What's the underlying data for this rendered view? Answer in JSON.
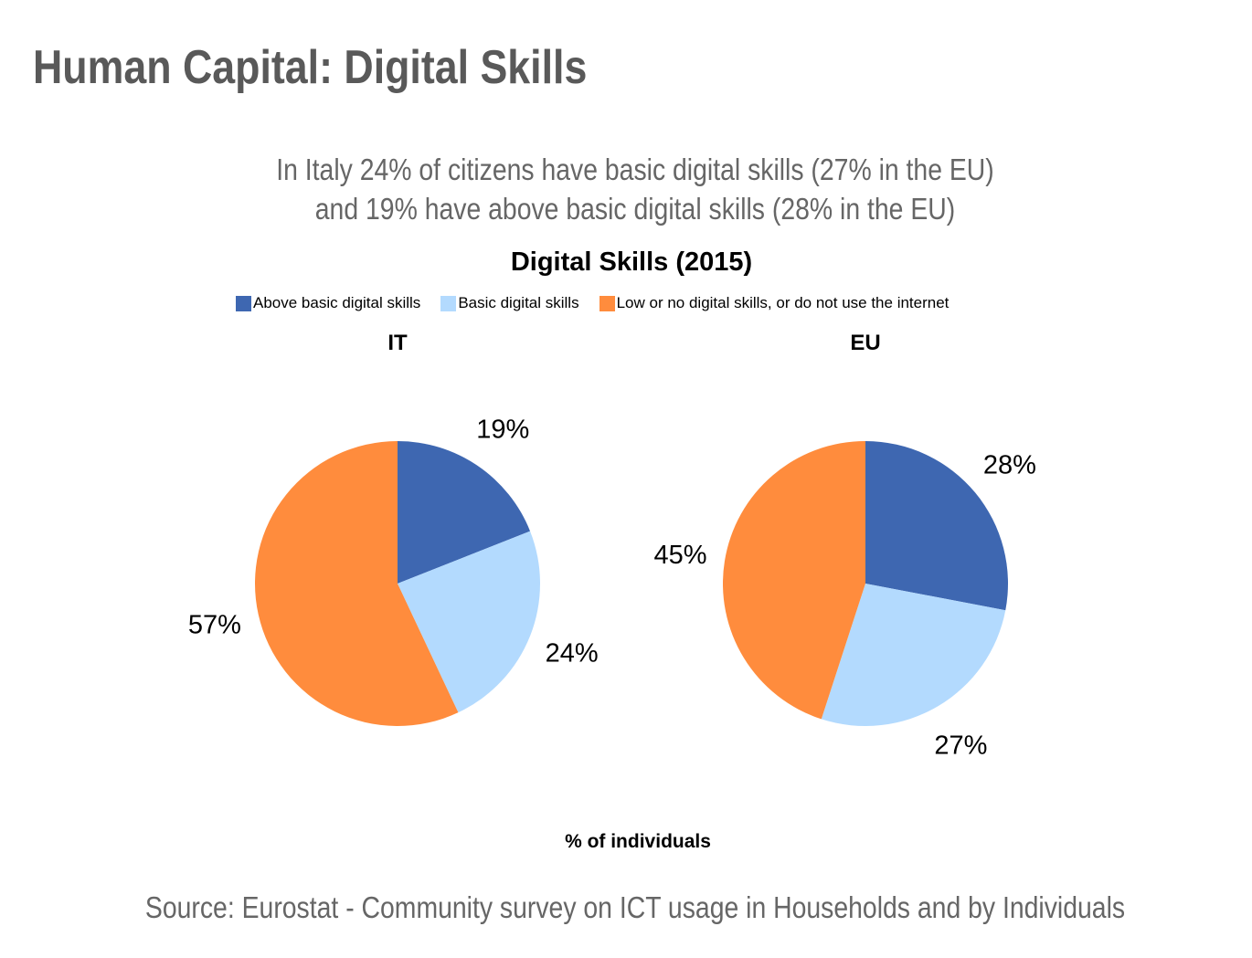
{
  "header": {
    "title": "Human Capital: Digital Skills"
  },
  "subtitle": [
    "In Italy 24% of citizens have basic digital skills (27% in the EU)",
    "and 19% have above basic digital skills (28% in the EU)"
  ],
  "source": "Source: Eurostat - Community survey on ICT usage in Households and by Individuals",
  "chart_data": {
    "type": "pie",
    "title": "Digital Skills (2015)",
    "xlabel": "% of individuals",
    "legend_position": "top",
    "categories": [
      "Above basic digital skills",
      "Basic digital skills",
      "Low or no digital skills, or do not use the internet"
    ],
    "colors": [
      "#3E67B1",
      "#B3DAFE",
      "#FF8C3D"
    ],
    "series": [
      {
        "name": "IT",
        "values": [
          19,
          24,
          57
        ],
        "labels": [
          "19%",
          "24%",
          "57%"
        ]
      },
      {
        "name": "EU",
        "values": [
          28,
          27,
          45
        ],
        "labels": [
          "28%",
          "27%",
          "45%"
        ]
      }
    ]
  }
}
